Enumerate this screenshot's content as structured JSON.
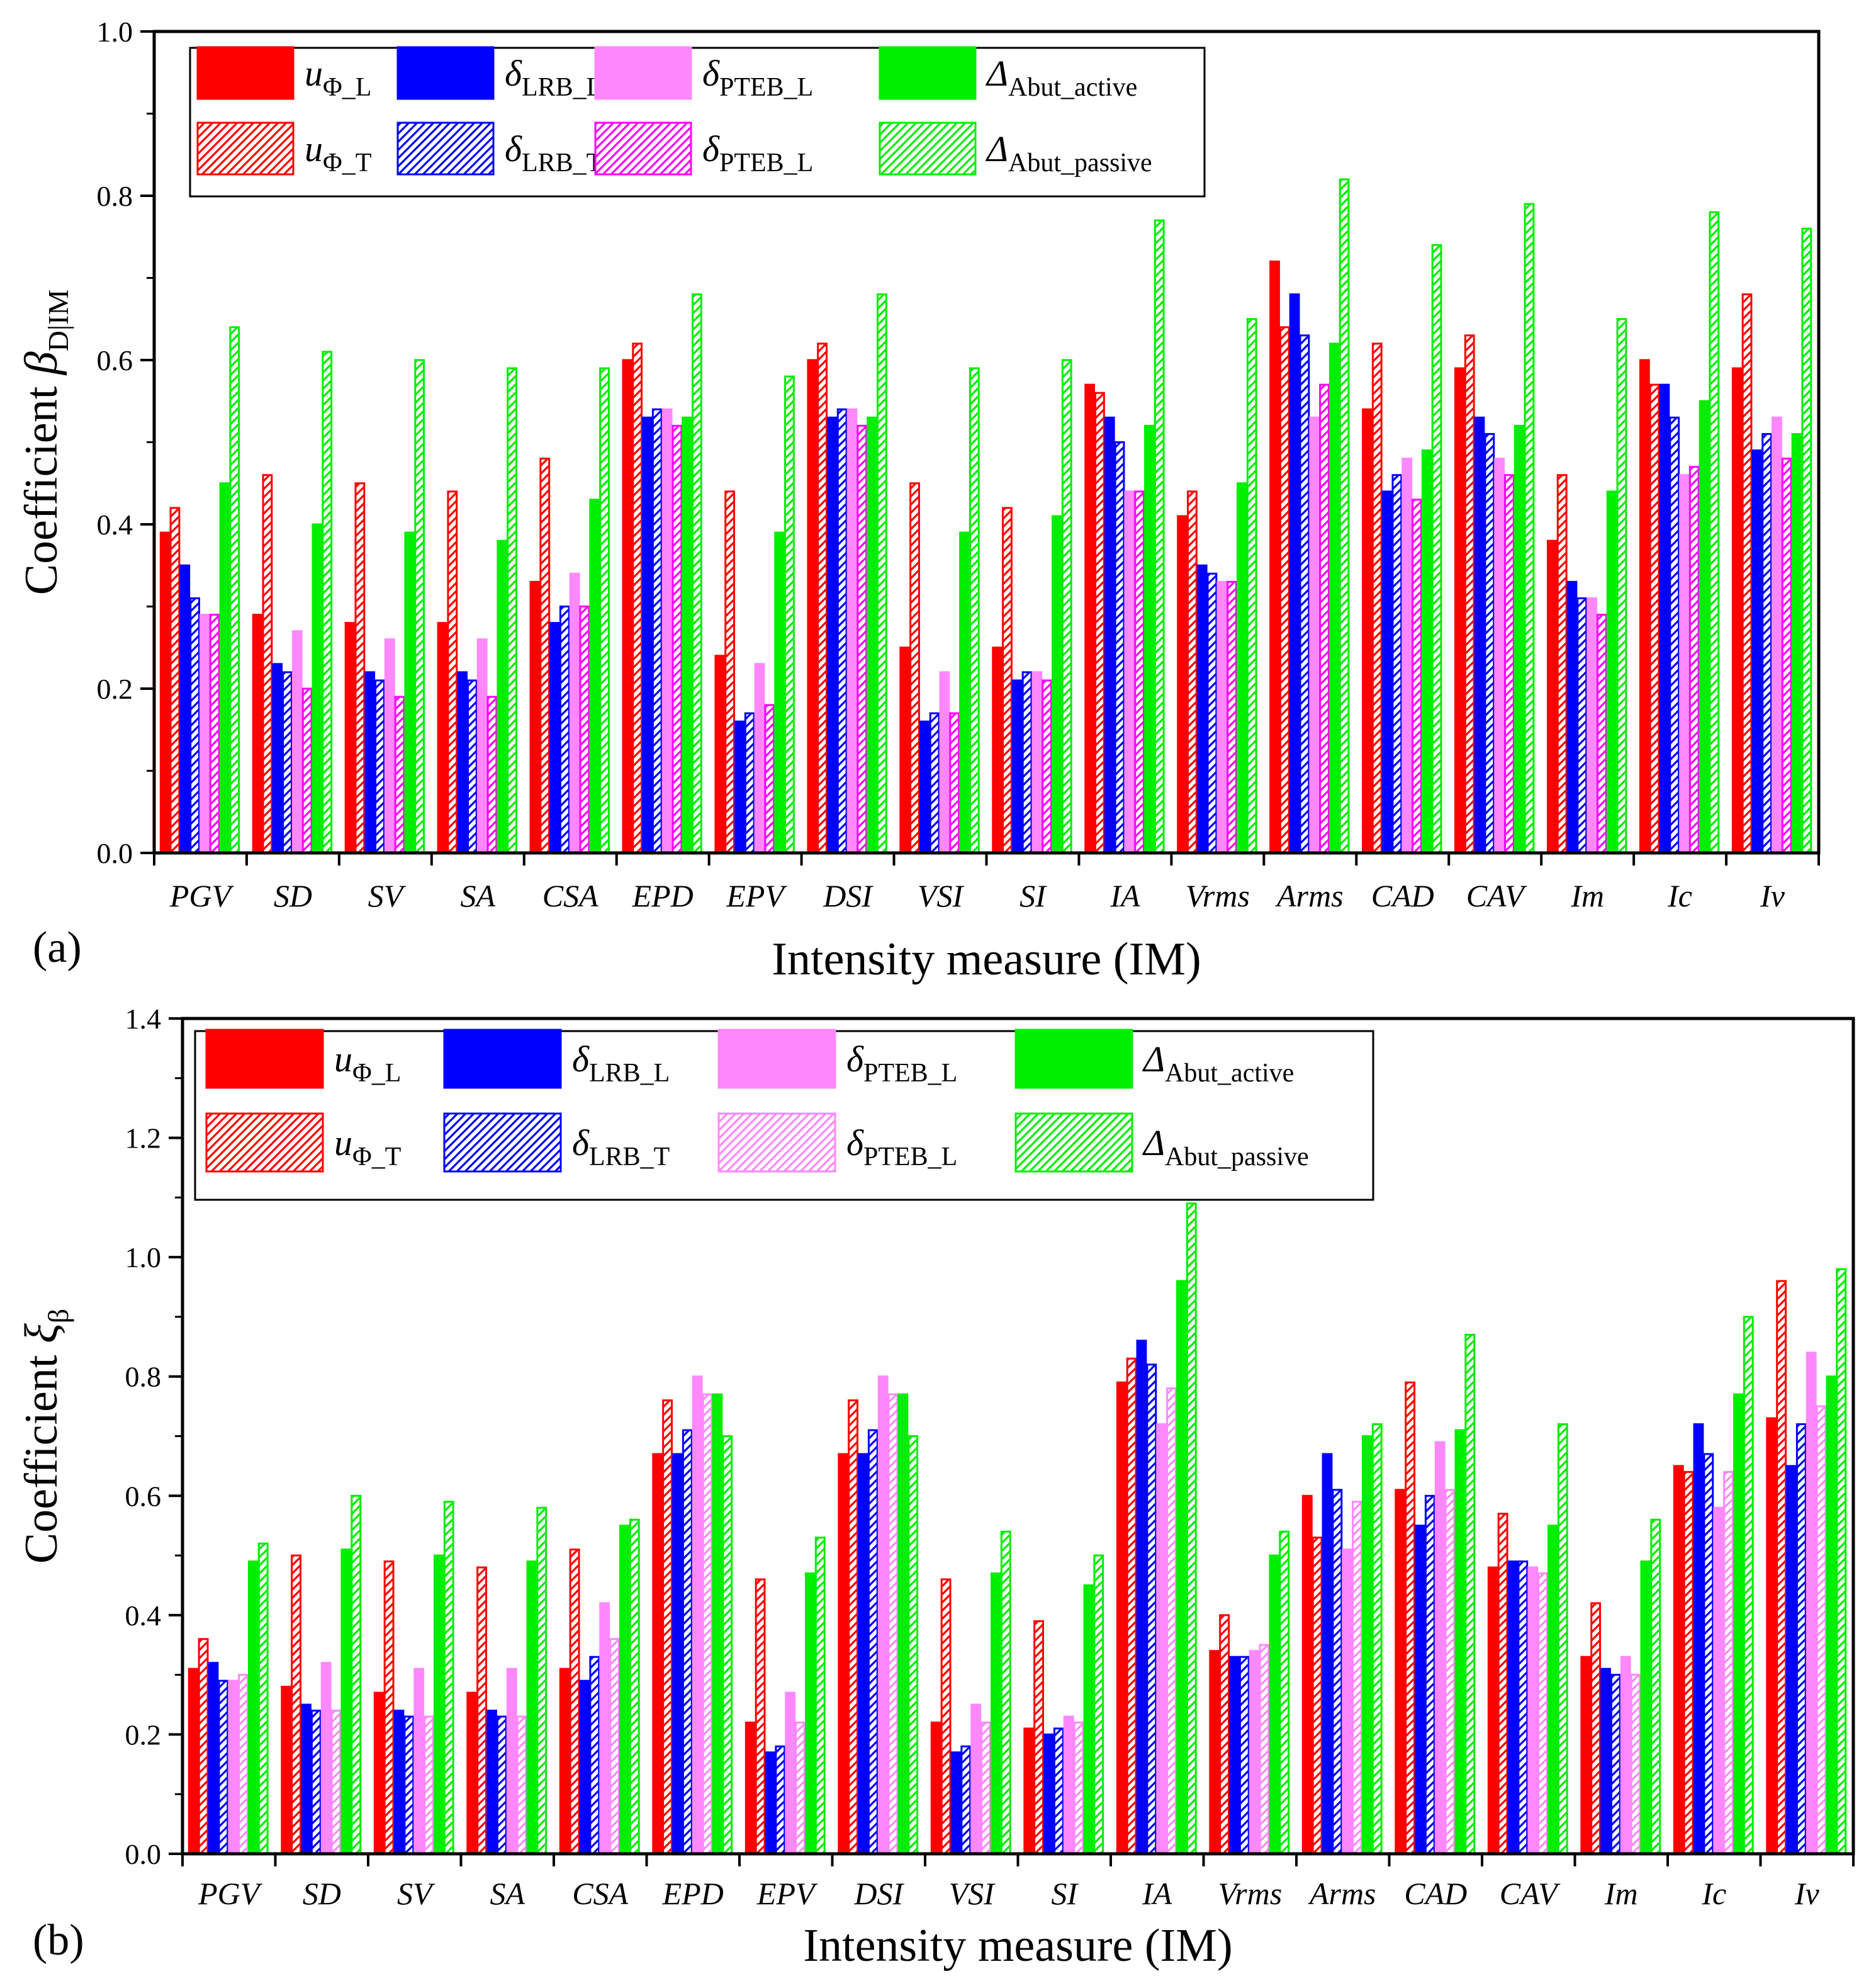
{
  "chart_data": [
    {
      "type": "bar",
      "panel_label": "(a)",
      "title": "",
      "xlabel": "Intensity measure (IM)",
      "ylabel": {
        "prefix": "Coefficient ",
        "symbol": "β",
        "subscript": "D|IM"
      },
      "ylim": [
        0,
        1.0
      ],
      "yticks": [
        "0.0",
        "0.2",
        "0.4",
        "0.6",
        "0.8",
        "1.0"
      ],
      "grid": false,
      "legend_position": "top-left",
      "categories": [
        "PGV",
        "SD",
        "SV",
        "SA",
        "CSA",
        "EPD",
        "EPV",
        "DSI",
        "VSI",
        "SI",
        "IA",
        "Vrms",
        "Arms",
        "CAD",
        "CAV",
        "Im",
        "Ic",
        "Iv"
      ],
      "series": [
        {
          "name": "u_Φ_L",
          "label_main": "u",
          "label_sub": "Φ_L",
          "color": "#ff0000",
          "pattern": "solid",
          "values": [
            0.39,
            0.29,
            0.28,
            0.28,
            0.33,
            0.6,
            0.24,
            0.6,
            0.25,
            0.25,
            0.57,
            0.41,
            0.72,
            0.54,
            0.59,
            0.38,
            0.6,
            0.59
          ]
        },
        {
          "name": "u_Φ_T",
          "label_main": "u",
          "label_sub": "Φ_T",
          "color": "#ff0000",
          "pattern": "hatched",
          "values": [
            0.42,
            0.46,
            0.45,
            0.44,
            0.48,
            0.62,
            0.44,
            0.62,
            0.45,
            0.42,
            0.56,
            0.44,
            0.64,
            0.62,
            0.63,
            0.46,
            0.57,
            0.68
          ]
        },
        {
          "name": "δ_LRB_L",
          "label_main": "δ",
          "label_sub": "LRB_L",
          "color": "#0000ff",
          "pattern": "solid",
          "values": [
            0.35,
            0.23,
            0.22,
            0.22,
            0.28,
            0.53,
            0.16,
            0.53,
            0.16,
            0.21,
            0.53,
            0.35,
            0.68,
            0.44,
            0.53,
            0.33,
            0.57,
            0.49
          ]
        },
        {
          "name": "δ_LRB_T",
          "label_main": "δ",
          "label_sub": "LRB_T",
          "color": "#0000ff",
          "pattern": "hatched",
          "values": [
            0.31,
            0.22,
            0.21,
            0.21,
            0.3,
            0.54,
            0.17,
            0.54,
            0.17,
            0.22,
            0.5,
            0.34,
            0.63,
            0.46,
            0.51,
            0.31,
            0.53,
            0.51
          ]
        },
        {
          "name": "δ_PTEB_L",
          "label_main": "δ",
          "label_sub": "PTEB_L",
          "color": "#ff88ff",
          "pattern": "solid",
          "values": [
            0.29,
            0.27,
            0.26,
            0.26,
            0.34,
            0.54,
            0.23,
            0.54,
            0.22,
            0.22,
            0.44,
            0.33,
            0.53,
            0.48,
            0.48,
            0.31,
            0.46,
            0.53
          ]
        },
        {
          "name": "δ_PTEB_L (hatched)",
          "label_main": "δ",
          "label_sub": "PTEB_L",
          "color": "#ff00ff",
          "pattern": "hatched",
          "values": [
            0.29,
            0.2,
            0.19,
            0.19,
            0.3,
            0.52,
            0.18,
            0.52,
            0.17,
            0.21,
            0.44,
            0.33,
            0.57,
            0.43,
            0.46,
            0.29,
            0.47,
            0.48
          ]
        },
        {
          "name": "Δ_Abut_active",
          "label_main": "Δ",
          "label_sub": "Abut_active",
          "color": "#00ee00",
          "pattern": "solid",
          "values": [
            0.45,
            0.4,
            0.39,
            0.38,
            0.43,
            0.53,
            0.39,
            0.53,
            0.39,
            0.41,
            0.52,
            0.45,
            0.62,
            0.49,
            0.52,
            0.44,
            0.55,
            0.51
          ]
        },
        {
          "name": "Δ_Abut_passive",
          "label_main": "Δ",
          "label_sub": "Abut_passive",
          "color": "#00ee00",
          "pattern": "hatched",
          "values": [
            0.64,
            0.61,
            0.6,
            0.59,
            0.59,
            0.68,
            0.58,
            0.68,
            0.59,
            0.6,
            0.77,
            0.65,
            0.82,
            0.74,
            0.79,
            0.65,
            0.78,
            0.76
          ]
        }
      ]
    },
    {
      "type": "bar",
      "panel_label": "(b)",
      "title": "",
      "xlabel": "Intensity measure (IM)",
      "ylabel": {
        "prefix": "Coefficient ",
        "symbol": "ξ",
        "subscript": "β"
      },
      "ylim": [
        0,
        1.4
      ],
      "yticks": [
        "0.0",
        "0.2",
        "0.4",
        "0.6",
        "0.8",
        "1.0",
        "1.2",
        "1.4"
      ],
      "grid": false,
      "legend_position": "top-left",
      "categories": [
        "PGV",
        "SD",
        "SV",
        "SA",
        "CSA",
        "EPD",
        "EPV",
        "DSI",
        "VSI",
        "SI",
        "IA",
        "Vrms",
        "Arms",
        "CAD",
        "CAV",
        "Im",
        "Ic",
        "Iv"
      ],
      "series": [
        {
          "name": "u_Φ_L",
          "label_main": "u",
          "label_sub": "Φ_L",
          "color": "#ff0000",
          "pattern": "solid",
          "values": [
            0.31,
            0.28,
            0.27,
            0.27,
            0.31,
            0.67,
            0.22,
            0.67,
            0.22,
            0.21,
            0.79,
            0.34,
            0.6,
            0.61,
            0.48,
            0.33,
            0.65,
            0.73
          ]
        },
        {
          "name": "u_Φ_T",
          "label_main": "u",
          "label_sub": "Φ_T",
          "color": "#ff0000",
          "pattern": "hatched",
          "values": [
            0.36,
            0.5,
            0.49,
            0.48,
            0.51,
            0.76,
            0.46,
            0.76,
            0.46,
            0.39,
            0.83,
            0.4,
            0.53,
            0.79,
            0.57,
            0.42,
            0.64,
            0.96
          ]
        },
        {
          "name": "δ_LRB_L",
          "label_main": "δ",
          "label_sub": "LRB_L",
          "color": "#0000ff",
          "pattern": "solid",
          "values": [
            0.32,
            0.25,
            0.24,
            0.24,
            0.29,
            0.67,
            0.17,
            0.67,
            0.17,
            0.2,
            0.86,
            0.33,
            0.67,
            0.55,
            0.49,
            0.31,
            0.72,
            0.65
          ]
        },
        {
          "name": "δ_LRB_T",
          "label_main": "δ",
          "label_sub": "LRB_T",
          "color": "#0000ff",
          "pattern": "hatched",
          "values": [
            0.29,
            0.24,
            0.23,
            0.23,
            0.33,
            0.71,
            0.18,
            0.71,
            0.18,
            0.21,
            0.82,
            0.33,
            0.61,
            0.6,
            0.49,
            0.3,
            0.67,
            0.72
          ]
        },
        {
          "name": "δ_PTEB_L",
          "label_main": "δ",
          "label_sub": "PTEB_L",
          "color": "#ff88ff",
          "pattern": "solid",
          "values": [
            0.29,
            0.32,
            0.31,
            0.31,
            0.42,
            0.8,
            0.27,
            0.8,
            0.25,
            0.23,
            0.72,
            0.34,
            0.51,
            0.69,
            0.48,
            0.33,
            0.58,
            0.84
          ]
        },
        {
          "name": "δ_PTEB_L (hatched)",
          "label_main": "δ",
          "label_sub": "PTEB_L",
          "color": "#ff88ff",
          "pattern": "hatched",
          "values": [
            0.3,
            0.24,
            0.23,
            0.23,
            0.36,
            0.77,
            0.22,
            0.77,
            0.22,
            0.22,
            0.78,
            0.35,
            0.59,
            0.61,
            0.47,
            0.3,
            0.64,
            0.75
          ]
        },
        {
          "name": "Δ_Abut_active",
          "label_main": "Δ",
          "label_sub": "Abut_active",
          "color": "#00ee00",
          "pattern": "solid",
          "values": [
            0.49,
            0.51,
            0.5,
            0.49,
            0.55,
            0.77,
            0.47,
            0.77,
            0.47,
            0.45,
            0.96,
            0.5,
            0.7,
            0.71,
            0.55,
            0.49,
            0.77,
            0.8
          ]
        },
        {
          "name": "Δ_Abut_passive",
          "label_main": "Δ",
          "label_sub": "Abut_passive",
          "color": "#00ee00",
          "pattern": "hatched",
          "values": [
            0.52,
            0.6,
            0.59,
            0.58,
            0.56,
            0.7,
            0.53,
            0.7,
            0.54,
            0.5,
            1.09,
            0.54,
            0.72,
            0.87,
            0.72,
            0.56,
            0.9,
            0.98
          ]
        }
      ]
    }
  ]
}
